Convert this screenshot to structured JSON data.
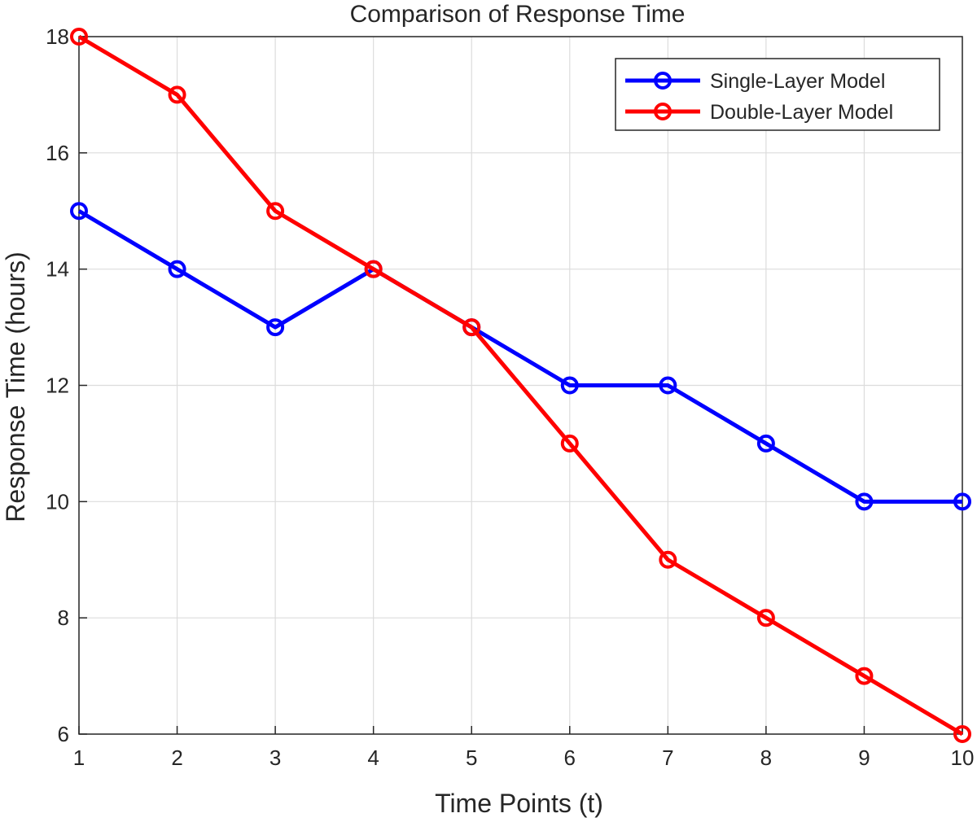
{
  "chart_data": {
    "type": "line",
    "title": "Comparison of Response Time",
    "xlabel": "Time Points (t)",
    "ylabel": "Response Time (hours)",
    "x": [
      1,
      2,
      3,
      4,
      5,
      6,
      7,
      8,
      9,
      10
    ],
    "xlim": [
      1,
      10
    ],
    "ylim": [
      6,
      18
    ],
    "xticks": [
      "1",
      "2",
      "3",
      "4",
      "5",
      "6",
      "7",
      "8",
      "9",
      "10"
    ],
    "yticks": [
      "6",
      "8",
      "10",
      "12",
      "14",
      "16",
      "18"
    ],
    "grid": true,
    "legend_position": "top-right",
    "series": [
      {
        "name": "Single-Layer Model",
        "color": "#0000ff",
        "marker": "circle",
        "values": [
          15,
          14,
          13,
          14,
          13,
          12,
          12,
          11,
          10,
          10
        ]
      },
      {
        "name": "Double-Layer Model",
        "color": "#ff0000",
        "marker": "circle",
        "values": [
          18,
          17,
          15,
          14,
          13,
          11,
          9,
          8,
          7,
          6
        ]
      }
    ]
  }
}
